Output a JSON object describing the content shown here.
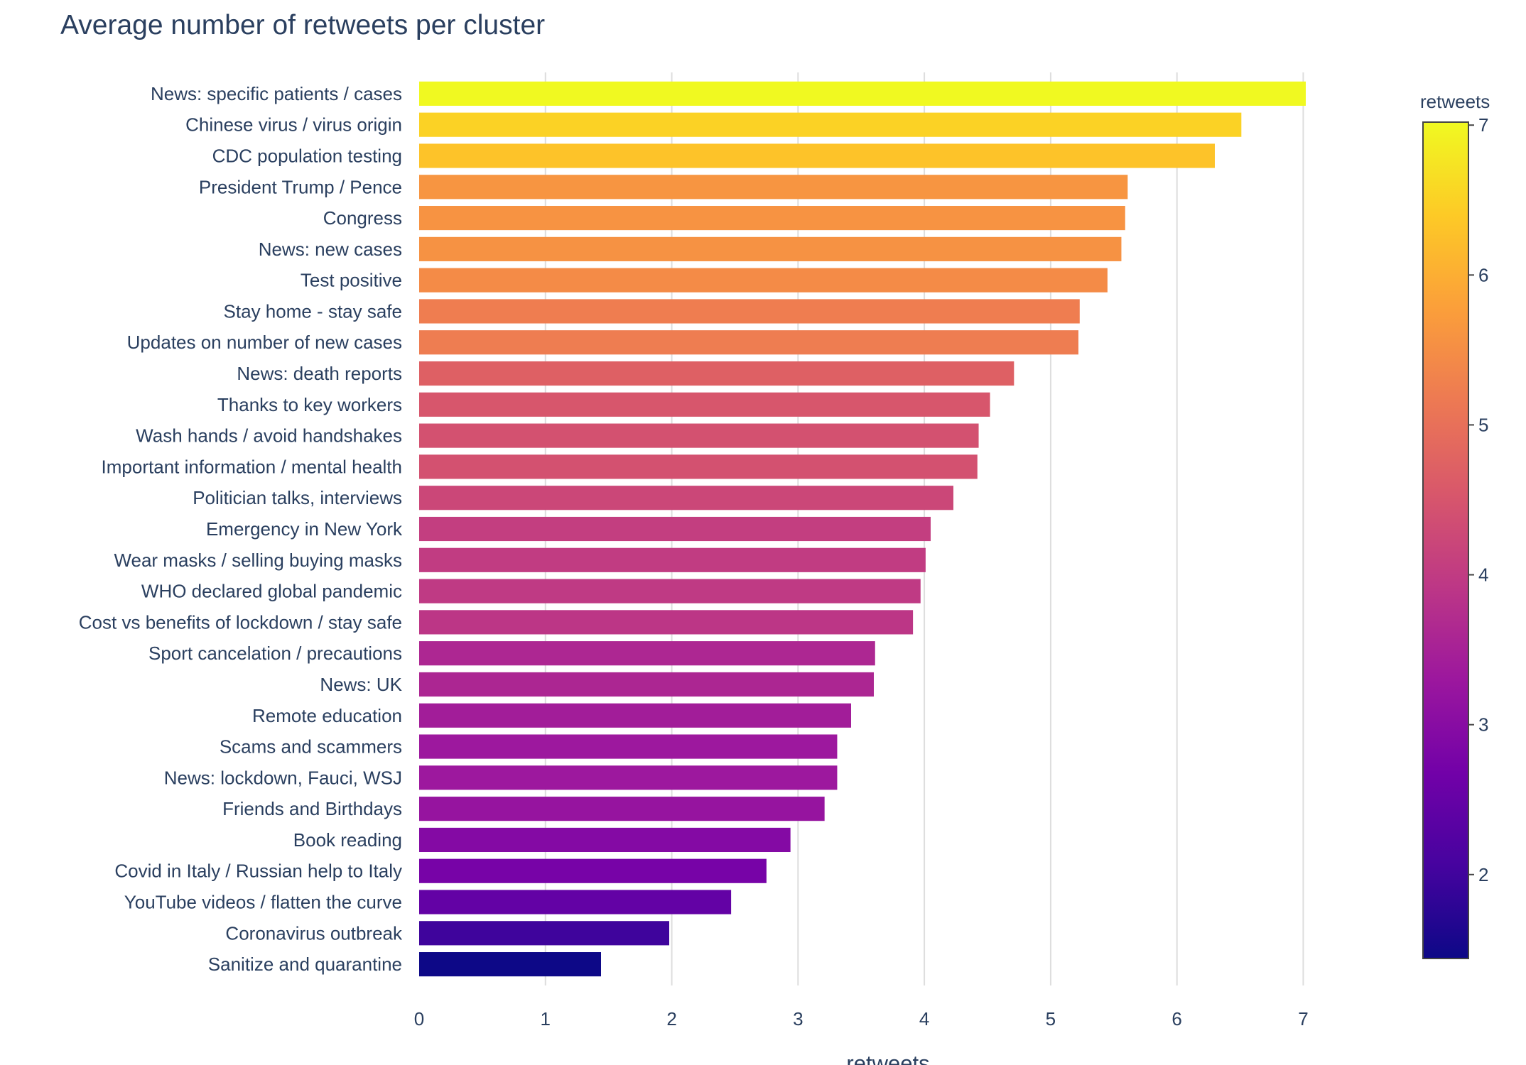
{
  "chart_data": {
    "type": "bar",
    "orientation": "horizontal",
    "title": "Average number of retweets per cluster",
    "xlabel": "retweets",
    "ylabel": "",
    "xlim": [
      0,
      7.65
    ],
    "xticks": [
      0,
      1,
      2,
      3,
      4,
      5,
      6,
      7
    ],
    "grid": true,
    "categories": [
      "News: specific patients / cases",
      "Chinese virus / virus origin",
      "CDC population testing",
      "President Trump / Pence",
      "Congress",
      "News: new cases",
      "Test positive",
      "Stay home - stay safe",
      "Updates on number of new cases",
      "News: death reports",
      "Thanks to key workers",
      "Wash hands / avoid handshakes",
      "Important information / mental health",
      "Politician talks, interviews",
      "Emergency in New York",
      "Wear masks / selling buying masks",
      "WHO declared global pandemic",
      "Cost vs benefits of lockdown / stay safe",
      "Sport cancelation / precautions",
      "News: UK",
      "Remote education",
      "Scams and scammers",
      "News: lockdown, Fauci, WSJ",
      "Friends and Birthdays",
      "Book reading",
      "Covid in Italy / Russian help to Italy",
      "YouTube videos / flatten the curve",
      "Coronavirus outbreak",
      "Sanitize and quarantine"
    ],
    "values": [
      7.02,
      6.51,
      6.3,
      5.61,
      5.59,
      5.56,
      5.45,
      5.23,
      5.22,
      4.71,
      4.52,
      4.43,
      4.42,
      4.23,
      4.05,
      4.01,
      3.97,
      3.91,
      3.61,
      3.6,
      3.42,
      3.31,
      3.31,
      3.21,
      2.94,
      2.75,
      2.47,
      1.98,
      1.44
    ],
    "colorbar": {
      "title": "retweets",
      "min": 1.44,
      "max": 7.02,
      "ticks": [
        2,
        3,
        4,
        5,
        6,
        7
      ],
      "colorscale": "Plasma",
      "colors": [
        "#0d0887",
        "#46039f",
        "#7201a8",
        "#9c179e",
        "#bd3786",
        "#d8576b",
        "#ed7953",
        "#fb9f3a",
        "#fdca26",
        "#f0f921"
      ]
    }
  }
}
